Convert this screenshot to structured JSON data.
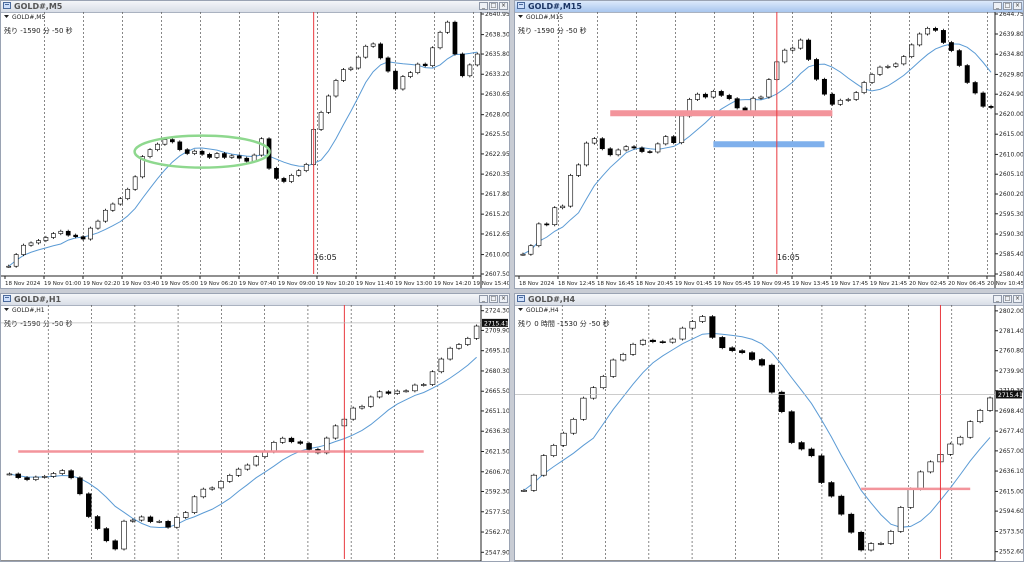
{
  "colors": {
    "candle_up": "#000000",
    "candle_down": "#000000",
    "ma": "#5b9bd5",
    "vline": "#e8393f",
    "hline_red": "#f3949b",
    "hline_blue": "#7fb0ec",
    "ellipse": "#8ed88e",
    "grid": "#555555",
    "accent_title": "#a9c6ee"
  },
  "icons": [
    "window-icon",
    "minimize-icon",
    "maximize-icon",
    "close-icon",
    "dropdown-icon"
  ],
  "windows": [
    {
      "title": "GOLD#,M5",
      "label": "GOLD#,M5",
      "remaining": "残り -1590 分 -50 秒",
      "x_labels": [
        "18 Nov 2024",
        "19 Nov 01:00",
        "19 Nov 02:20",
        "19 Nov 03:40",
        "19 Nov 05:00",
        "19 Nov 06:20",
        "19 Nov 07:40",
        "19 Nov 09:00",
        "19 Nov 10:20",
        "19 Nov 11:40",
        "19 Nov 13:00",
        "19 Nov 14:20",
        "19 Nov 15:40"
      ],
      "y_labels": [
        "2640.95",
        "2638.30",
        "2635.80",
        "2633.20",
        "2630.65",
        "2628.00",
        "2625.50",
        "2622.95",
        "2620.35",
        "2617.80",
        "2615.20",
        "2612.65",
        "2610.00",
        "2607.50"
      ],
      "y_range": [
        2607.5,
        2640.95
      ],
      "annotation": "16:05",
      "chart_data": {
        "type": "candlestick",
        "series": [
          {
            "name": "",
            "values": [
              2608.5,
              2610.0,
              2611.2,
              2611.5,
              2611.8,
              2612.2,
              2612.7,
              2613.0,
              2612.5,
              2612.3,
              2612.0,
              2613.4,
              2614.3,
              2615.7,
              2616.5,
              2617.2,
              2618.4,
              2620.0,
              2622.6,
              2623.5,
              2624.2,
              2624.8,
              2624.5,
              2623.5,
              2623.0,
              2623.3,
              2622.9,
              2622.5,
              2623.0,
              2622.5,
              2622.7,
              2622.4,
              2622.0,
              2622.8,
              2624.9,
              2621.1,
              2619.8,
              2619.4,
              2620.2,
              2620.8,
              2621.6,
              2626.1,
              2628.3,
              2630.4,
              2632.4,
              2633.8,
              2634.0,
              2635.4,
              2636.8,
              2637.1,
              2635.3,
              2633.6,
              2631.3,
              2632.9,
              2633.4,
              2634.5,
              2634.3,
              2636.6,
              2638.6,
              2639.9,
              2635.8,
              2633.0,
              2634.4,
              2635.8
            ]
          }
        ]
      },
      "events": {
        "vline_index": 41,
        "ellipse": [
          18,
          34
        ]
      }
    },
    {
      "title": "GOLD#,M15",
      "label": "GOLD#,M15",
      "remaining": "残り -1590 分 -50 秒",
      "x_labels": [
        "18 Nov 2024",
        "18 Nov 12:45",
        "18 Nov 16:45",
        "18 Nov 20:45",
        "19 Nov 01:45",
        "19 Nov 05:45",
        "19 Nov 09:45",
        "19 Nov 13:45",
        "19 Nov 17:45",
        "19 Nov 21:45",
        "20 Nov 02:45",
        "20 Nov 06:45",
        "20 Nov 10:45"
      ],
      "y_labels": [
        "2644.75",
        "2639.80",
        "2634.80",
        "2629.80",
        "2624.90",
        "2620.00",
        "2615.00",
        "2610.00",
        "2605.10",
        "2600.20",
        "2595.30",
        "2590.30",
        "2585.40",
        "2580.40"
      ],
      "y_range": [
        2580.4,
        2644.75
      ],
      "annotation": "16:05",
      "chart_data": {
        "type": "candlestick",
        "series": [
          {
            "name": "",
            "values": [
              2585.3,
              2587.4,
              2592.8,
              2592.6,
              2596.8,
              2597.2,
              2604.8,
              2607.4,
              2612.8,
              2613.9,
              2611.4,
              2609.9,
              2611.1,
              2611.9,
              2611.6,
              2610.7,
              2610.6,
              2612.6,
              2614.4,
              2612.9,
              2619.5,
              2623.6,
              2624.9,
              2624.2,
              2625.6,
              2624.6,
              2623.8,
              2621.5,
              2620.2,
              2623.9,
              2624.2,
              2628.5,
              2632.9,
              2635.8,
              2636.3,
              2638.3,
              2633.5,
              2628.6,
              2624.9,
              2622.4,
              2623.4,
              2623.6,
              2625.3,
              2627.8,
              2629.8,
              2631.6,
              2631.8,
              2632.4,
              2634.2,
              2637.1,
              2639.8,
              2641.2,
              2640.7,
              2637.7,
              2635.7,
              2632.0,
              2627.8,
              2625.2,
              2621.9,
              2621.6
            ]
          }
        ]
      },
      "events": {
        "vline_index": 32,
        "hline_red": [
          11,
          39,
          2620.2
        ],
        "hline_blue": [
          24,
          38,
          2612.5
        ]
      }
    },
    {
      "title": "GOLD#,H1",
      "label": "GOLD#,H1",
      "remaining": "残り -1590 分 -50 秒",
      "x_labels": [],
      "y_labels": [
        "2724.30",
        "2709.90",
        "2695.10",
        "2680.30",
        "2665.50",
        "2651.10",
        "2636.30",
        "2621.50",
        "2606.70",
        "2592.30",
        "2577.50",
        "2562.70",
        "2547.90"
      ],
      "y_range": [
        2543.0,
        2727.0
      ],
      "price_tag": "2715.41",
      "chart_data": {
        "type": "candlestick",
        "series": [
          {
            "name": "",
            "values": [
              2605.1,
              2602.4,
              2601.0,
              2602.8,
              2603.3,
              2605.4,
              2607.5,
              2602.3,
              2590.6,
              2574.0,
              2565.2,
              2556.3,
              2550.3,
              2570.6,
              2571.4,
              2573.7,
              2570.3,
              2570.5,
              2566.2,
              2573.4,
              2576.9,
              2588.4,
              2594.0,
              2594.9,
              2599.7,
              2604.1,
              2608.6,
              2611.6,
              2617.7,
              2621.3,
              2628.2,
              2631.2,
              2628.6,
              2627.4,
              2623.0,
              2620.5,
              2631.3,
              2640.2,
              2645.1,
              2653.2,
              2654.5,
              2661.3,
              2665.1,
              2663.9,
              2665.6,
              2665.8,
              2670.0,
              2670.4,
              2679.7,
              2689.0,
              2696.9,
              2699.6,
              2704.1,
              2713.1
            ]
          }
        ]
      },
      "events": {
        "vline_index": 38,
        "hline_red": [
          1,
          47,
          2621.5
        ]
      }
    },
    {
      "title": "GOLD#,H4",
      "label": "GOLD#,H4",
      "remaining": "残り 0 時間 -1530 分 -50 秒",
      "x_labels": [],
      "y_labels": [
        "2802.00",
        "2781.40",
        "2760.80",
        "2739.90",
        "2719.30",
        "2698.40",
        "2677.40",
        "2657.00",
        "2636.10",
        "2615.00",
        "2594.60",
        "2573.50",
        "2552.60"
      ],
      "y_range": [
        2545.0,
        2806.0
      ],
      "price_tag": "2715.41",
      "chart_data": {
        "type": "candlestick",
        "series": [
          {
            "name": "",
            "values": [
              2616.1,
              2631.8,
              2652.1,
              2662.7,
              2675.3,
              2689.7,
              2711.6,
              2722.4,
              2734.1,
              2751.1,
              2757.0,
              2767.4,
              2771.6,
              2770.1,
              2769.6,
              2772.8,
              2784.1,
              2791.0,
              2796.1,
              2774.5,
              2763.8,
              2760.8,
              2758.7,
              2751.6,
              2745.8,
              2717.8,
              2697.6,
              2665.6,
              2658.9,
              2651.9,
              2624.2,
              2610.1,
              2591.4,
              2572.7,
              2554.3,
              2560.9,
              2561.2,
              2573.6,
              2598.4,
              2617.6,
              2635.2,
              2645.6,
              2653.4,
              2664.1,
              2671.1,
              2687.2,
              2698.9,
              2711.8
            ]
          }
        ]
      },
      "events": {
        "vline_index": 42,
        "hline_red": [
          34,
          45,
          2617.6
        ]
      }
    }
  ]
}
